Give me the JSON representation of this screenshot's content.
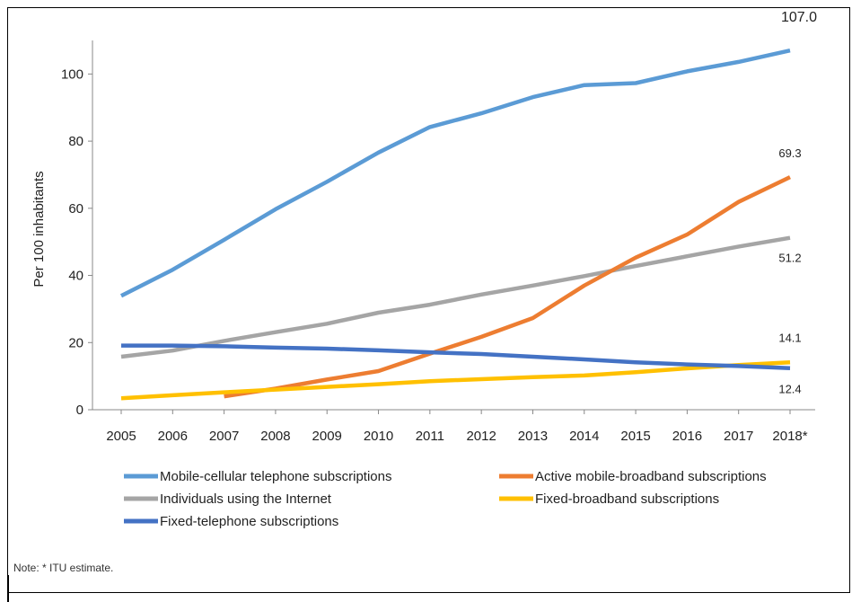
{
  "chart_data": {
    "type": "line",
    "ylabel": "Per 100 inhabitants",
    "xlabel": "",
    "ylim": [
      0,
      110
    ],
    "yticks": [
      0,
      20,
      40,
      60,
      80,
      100
    ],
    "categories": [
      "2005",
      "2006",
      "2007",
      "2008",
      "2009",
      "2010",
      "2011",
      "2012",
      "2013",
      "2014",
      "2015",
      "2016",
      "2017",
      "2018*"
    ],
    "legend_position": "bottom",
    "grid": false,
    "series": [
      {
        "name": "Mobile-cellular telephone subscriptions",
        "color": "#5b9bd5",
        "values": [
          33.9,
          41.7,
          50.6,
          59.7,
          67.9,
          76.6,
          84.2,
          88.3,
          93.1,
          96.7,
          97.3,
          100.8,
          103.6,
          107.0
        ],
        "end_label": "107.0"
      },
      {
        "name": "Active mobile-broadband subscriptions",
        "color": "#ed7d31",
        "values": [
          null,
          null,
          4.0,
          6.3,
          9.0,
          11.5,
          16.7,
          21.7,
          27.3,
          37.0,
          45.3,
          52.2,
          61.9,
          69.3
        ],
        "end_label": "69.3"
      },
      {
        "name": "Individuals using the Internet",
        "color": "#a5a5a5",
        "values": [
          15.8,
          17.6,
          20.5,
          23.1,
          25.6,
          28.9,
          31.3,
          34.3,
          37.0,
          39.8,
          42.8,
          45.7,
          48.6,
          51.2
        ],
        "end_label": "51.2"
      },
      {
        "name": "Fixed-broadband subscriptions",
        "color": "#ffc000",
        "values": [
          3.4,
          4.3,
          5.2,
          6.0,
          6.8,
          7.6,
          8.5,
          9.1,
          9.7,
          10.2,
          11.2,
          12.3,
          13.3,
          14.1
        ],
        "end_label": "14.1"
      },
      {
        "name": "Fixed-telephone subscriptions",
        "color": "#4472c4",
        "values": [
          19.1,
          19.1,
          18.9,
          18.5,
          18.2,
          17.7,
          17.1,
          16.6,
          15.8,
          15.0,
          14.1,
          13.5,
          13.0,
          12.4
        ],
        "end_label": "12.4"
      }
    ]
  },
  "note": "Note: * ITU estimate."
}
